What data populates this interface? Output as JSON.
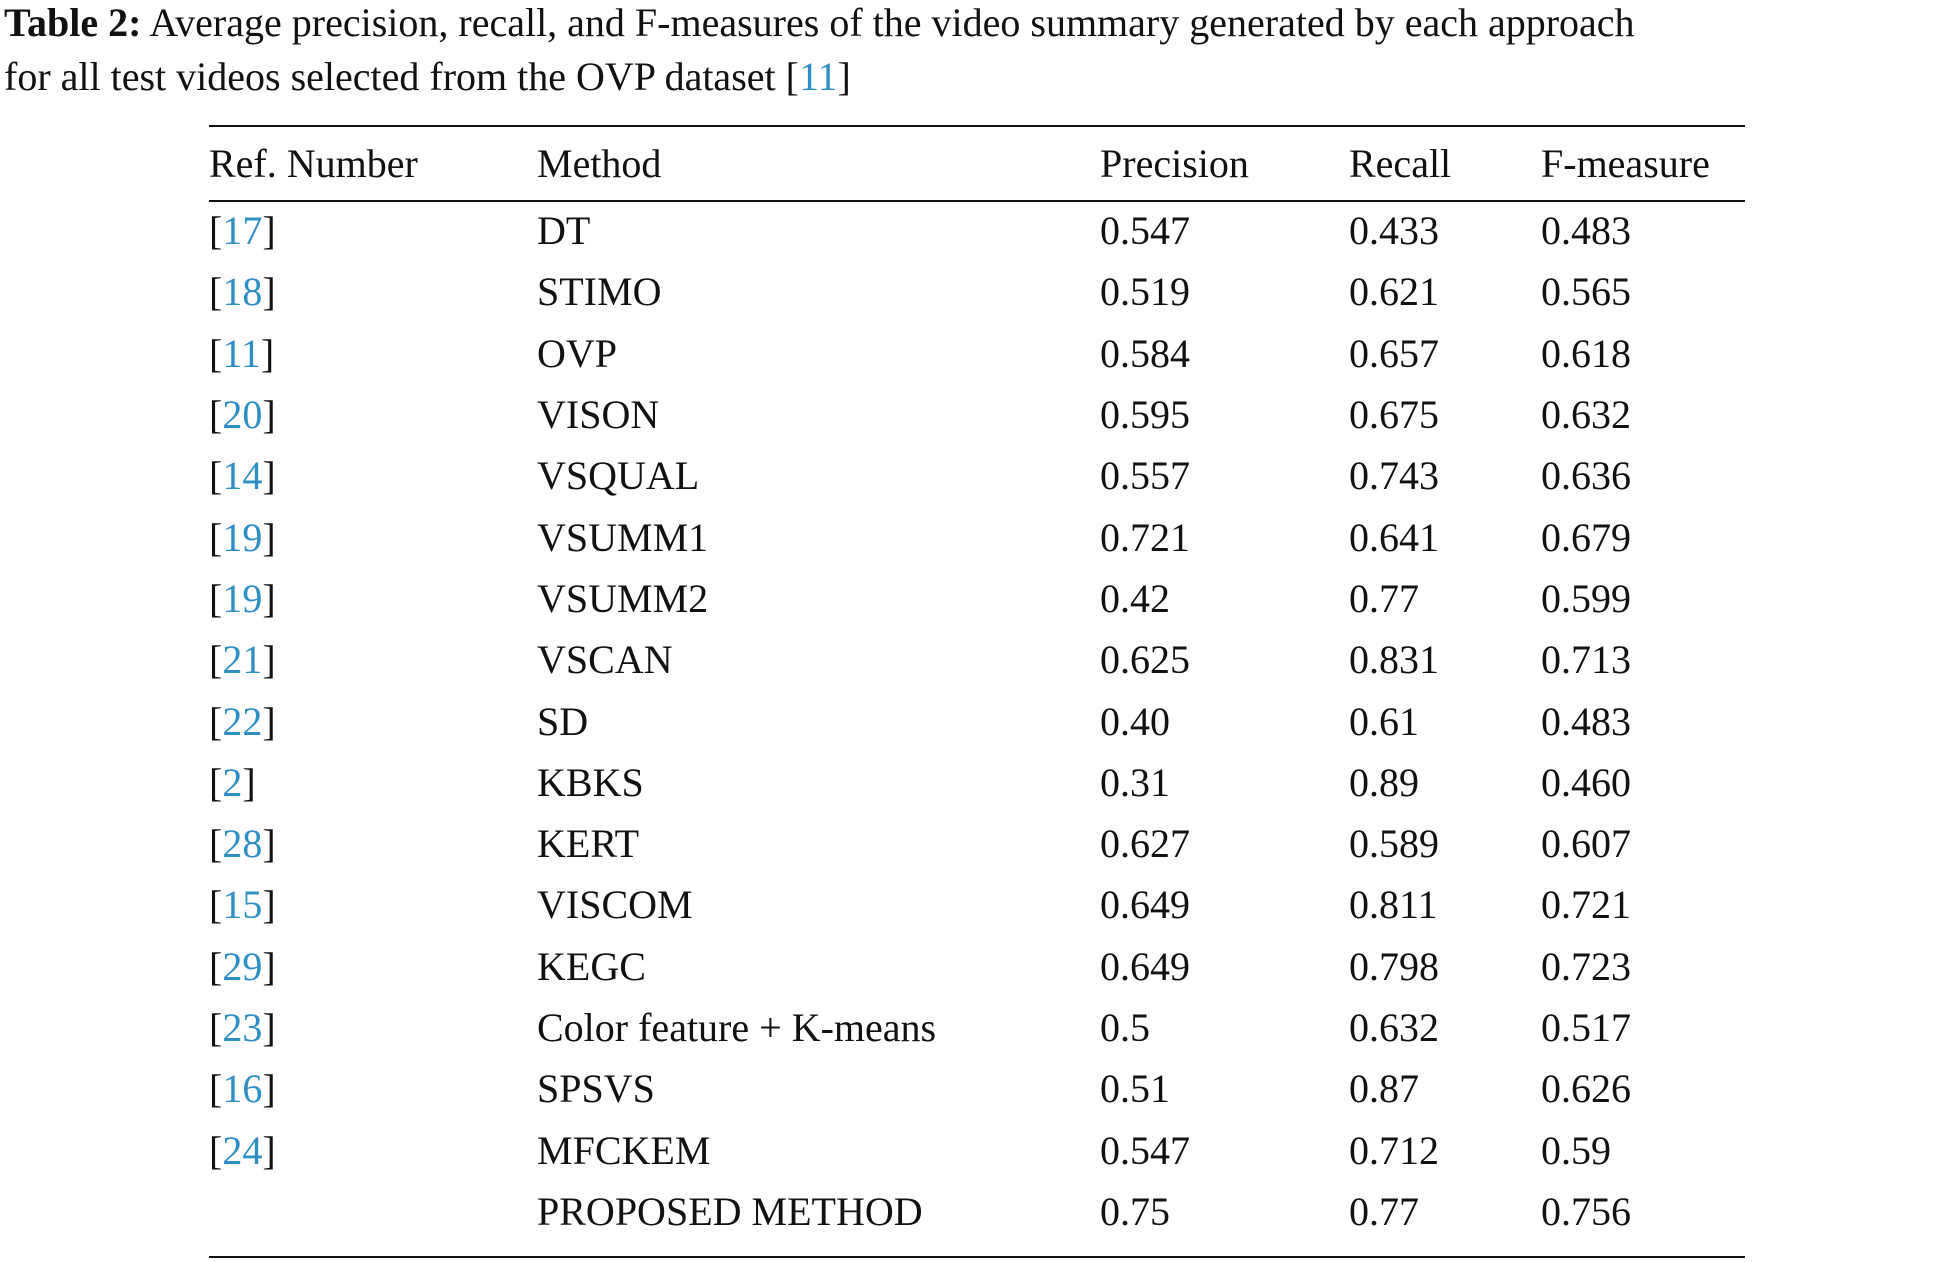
{
  "caption": {
    "label": "Table 2:",
    "line1": " Average precision, recall, and F-measures of the video summary generated by each approach",
    "line2_prefix": "for all test videos selected from the OVP dataset [",
    "line2_ref": "11",
    "line2_suffix": "]"
  },
  "table": {
    "headers": [
      "Ref. Number",
      "Method",
      "Precision",
      "Recall",
      "F-measure"
    ],
    "rows": [
      {
        "ref": "17",
        "method": "DT",
        "precision": "0.547",
        "recall": "0.433",
        "fmeasure": "0.483"
      },
      {
        "ref": "18",
        "method": "STIMO",
        "precision": "0.519",
        "recall": "0.621",
        "fmeasure": "0.565"
      },
      {
        "ref": "11",
        "method": "OVP",
        "precision": "0.584",
        "recall": "0.657",
        "fmeasure": "0.618"
      },
      {
        "ref": "20",
        "method": "VISON",
        "precision": "0.595",
        "recall": "0.675",
        "fmeasure": "0.632"
      },
      {
        "ref": "14",
        "method": "VSQUAL",
        "precision": "0.557",
        "recall": "0.743",
        "fmeasure": "0.636"
      },
      {
        "ref": "19",
        "method": "VSUMM1",
        "precision": "0.721",
        "recall": "0.641",
        "fmeasure": "0.679"
      },
      {
        "ref": "19",
        "method": "VSUMM2",
        "precision": "0.42",
        "recall": "0.77",
        "fmeasure": "0.599"
      },
      {
        "ref": "21",
        "method": "VSCAN",
        "precision": "0.625",
        "recall": "0.831",
        "fmeasure": "0.713"
      },
      {
        "ref": "22",
        "method": "SD",
        "precision": "0.40",
        "recall": "0.61",
        "fmeasure": "0.483"
      },
      {
        "ref": "2",
        "method": "KBKS",
        "precision": "0.31",
        "recall": "0.89",
        "fmeasure": "0.460"
      },
      {
        "ref": "28",
        "method": "KERT",
        "precision": "0.627",
        "recall": "0.589",
        "fmeasure": "0.607"
      },
      {
        "ref": "15",
        "method": "VISCOM",
        "precision": "0.649",
        "recall": "0.811",
        "fmeasure": "0.721"
      },
      {
        "ref": "29",
        "method": "KEGC",
        "precision": "0.649",
        "recall": "0.798",
        "fmeasure": "0.723"
      },
      {
        "ref": "23",
        "method": "Color feature + K-means",
        "precision": "0.5",
        "recall": "0.632",
        "fmeasure": "0.517"
      },
      {
        "ref": "16",
        "method": "SPSVS",
        "precision": "0.51",
        "recall": "0.87",
        "fmeasure": "0.626"
      },
      {
        "ref": "24",
        "method": "MFCKEM",
        "precision": "0.547",
        "recall": "0.712",
        "fmeasure": "0.59"
      },
      {
        "ref": "",
        "method": "PROPOSED METHOD",
        "precision": "0.75",
        "recall": "0.77",
        "fmeasure": "0.756"
      }
    ]
  },
  "colors": {
    "text": "#111111",
    "link": "#2e8fc4"
  }
}
